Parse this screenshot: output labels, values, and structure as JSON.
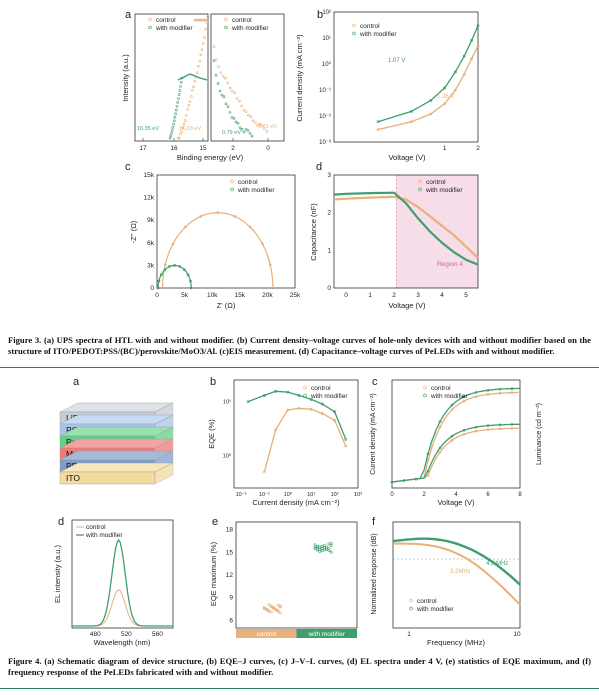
{
  "colors": {
    "control": "#e8b07a",
    "modifier": "#3f9e6e",
    "region4": "#f6dde9",
    "rule": "#2e7d5b"
  },
  "figure3": {
    "caption": "Figure 3. (a) UPS spectra of HTL with and without modifier. (b) Current density–voltage curves of hole-only devices with and without modifier based on the structure of ITO/PEDOT:PSS/(BC)/perovskite/MoO3/Al. (c)EIS measurement. (d) Capacitance–voltage curves of PeLEDs with and without modifier.",
    "panels": [
      "a",
      "b",
      "c",
      "d"
    ]
  },
  "figure4": {
    "caption": "Figure 4. (a) Schematic diagram of device structure, (b) EQE–J curves, (c) J–V–L curves, (d) EL spectra under 4 V, (e) statistics of EQE maximum, and (f) frequency response of the PeLEDs fabricated with and without modifier.",
    "panels": [
      "a",
      "b",
      "c",
      "d",
      "e",
      "f"
    ],
    "device_layers": [
      "LiF/Al",
      "POT2T",
      "Perovskite",
      "Modifier",
      "PEDOT:PSS",
      "ITO"
    ]
  },
  "legend": {
    "control": "control",
    "modifier": "with modifier"
  },
  "chart_data": [
    {
      "id": "3a",
      "type": "scatter",
      "xlabel": "Binding energy (eV)",
      "ylabel": "Intensity (a.u.)",
      "xticks_left": [
        "17",
        "16",
        "15"
      ],
      "xticks_right": [
        "2",
        "0"
      ],
      "annotations": [
        "16.35 eV",
        "16.03 eV",
        "0.79 eV",
        "0.21 eV"
      ]
    },
    {
      "id": "3b",
      "type": "scatter",
      "xlabel": "Voltage (V)",
      "ylabel": "Current density (mA cm⁻²)",
      "xlim": [
        0.1,
        2
      ],
      "ylim": [
        0.001,
        100
      ],
      "xticks": [
        "1",
        "2"
      ],
      "yticks": [
        "10²",
        "10¹",
        "10⁰",
        "10⁻¹",
        "10⁻²",
        "10⁻³"
      ],
      "annotations": [
        "1.07 V",
        "1.36 V"
      ],
      "series": [
        {
          "name": "control",
          "x": [
            0.25,
            0.5,
            0.75,
            1.0,
            1.25,
            1.5,
            1.75,
            2.0
          ],
          "y": [
            0.003,
            0.006,
            0.012,
            0.03,
            0.1,
            0.4,
            1.6,
            5
          ]
        },
        {
          "name": "with modifier",
          "x": [
            0.25,
            0.5,
            0.75,
            1.0,
            1.25,
            1.5,
            1.75,
            2.0
          ],
          "y": [
            0.006,
            0.015,
            0.04,
            0.12,
            0.5,
            2,
            8,
            30
          ]
        }
      ]
    },
    {
      "id": "3c",
      "type": "scatter",
      "xlabel": "Z' (Ω)",
      "ylabel": "-Z'' (Ω)",
      "xlim": [
        0,
        25000
      ],
      "ylim": [
        0,
        15000
      ],
      "xticks": [
        "0",
        "5k",
        "10k",
        "15k",
        "20k",
        "25k"
      ],
      "yticks": [
        "0",
        "3k",
        "6k",
        "9k",
        "12k",
        "15k"
      ],
      "series": [
        {
          "name": "control",
          "center": 11000,
          "radius": 10000
        },
        {
          "name": "with modifier",
          "center": 3200,
          "radius": 3000
        }
      ]
    },
    {
      "id": "3d",
      "type": "line",
      "xlabel": "Voltage (V)",
      "ylabel": "Capacitance (nF)",
      "xlim": [
        -0.5,
        5.5
      ],
      "ylim": [
        0,
        3
      ],
      "xticks": [
        "0",
        "1",
        "2",
        "3",
        "4",
        "5"
      ],
      "yticks": [
        "0",
        "1",
        "2",
        "3"
      ],
      "annotations": [
        "Region 4"
      ],
      "series": [
        {
          "name": "control",
          "x": [
            -0.5,
            0,
            1,
            2,
            2.5,
            3,
            3.5,
            4,
            4.5,
            5,
            5.5
          ],
          "y": [
            2.35,
            2.37,
            2.4,
            2.42,
            2.35,
            2.15,
            1.9,
            1.65,
            1.4,
            1.1,
            0.8
          ]
        },
        {
          "name": "with modifier",
          "x": [
            -0.5,
            0,
            1,
            2,
            2.5,
            3,
            3.5,
            4,
            4.5,
            5,
            5.5
          ],
          "y": [
            2.48,
            2.5,
            2.52,
            2.53,
            2.25,
            1.85,
            1.5,
            1.2,
            0.95,
            0.75,
            0.62
          ]
        }
      ]
    },
    {
      "id": "4b",
      "type": "line",
      "xlabel": "Current density (mA cm⁻²)",
      "ylabel": "EQE (%)",
      "xticks": [
        "10⁻²",
        "10⁻¹",
        "10⁰",
        "10¹",
        "10²",
        "10³"
      ],
      "yticks": [
        "10¹",
        "10⁰"
      ],
      "series": [
        {
          "name": "control",
          "x": [
            0.1,
            0.3,
            1,
            3,
            10,
            30,
            100,
            300
          ],
          "y": [
            0.5,
            3,
            7,
            7.5,
            7.2,
            6,
            4.5,
            1.5
          ]
        },
        {
          "name": "with modifier",
          "x": [
            0.02,
            0.1,
            0.3,
            1,
            3,
            10,
            30,
            100,
            300
          ],
          "y": [
            10,
            13,
            15.5,
            15,
            13,
            11,
            9,
            6.5,
            2
          ]
        }
      ]
    },
    {
      "id": "4c",
      "type": "line",
      "xlabel": "Voltage (V)",
      "ylabel": "Current density (mA cm⁻²)",
      "ylabel_right": "Luminance (cd m⁻²)",
      "xticks": [
        "0",
        "2",
        "4",
        "6",
        "8"
      ]
    },
    {
      "id": "4d",
      "type": "line",
      "xlabel": "Wavelength (nm)",
      "ylabel": "EL intensity (a.u.)",
      "xticks": [
        "480",
        "520",
        "560"
      ],
      "series": [
        {
          "name": "control",
          "peak": 510,
          "height": 0.42
        },
        {
          "name": "with modifier",
          "peak": 510,
          "height": 1.0
        }
      ]
    },
    {
      "id": "4e",
      "type": "scatter",
      "xlabel": "",
      "ylabel": "EQE maximum (%)",
      "categories": [
        "control",
        "with modifier"
      ],
      "ylim": [
        5,
        19
      ],
      "yticks": [
        "6",
        "9",
        "12",
        "15",
        "18"
      ],
      "series": [
        {
          "name": "control",
          "values": [
            7.4,
            7.6,
            7.8,
            7.3,
            7.5,
            7.7,
            7.9,
            7.2
          ]
        },
        {
          "name": "with modifier",
          "values": [
            15.3,
            15.6,
            15.9,
            15.4,
            15.7,
            16.0,
            15.5,
            15.2
          ]
        }
      ]
    },
    {
      "id": "4f",
      "type": "line",
      "xlabel": "Frequency (MHz)",
      "ylabel": "Normalized response (dB)",
      "xticks": [
        "1",
        "10"
      ],
      "annotations": [
        "4.9 MHz",
        "3.2MHz"
      ]
    }
  ]
}
